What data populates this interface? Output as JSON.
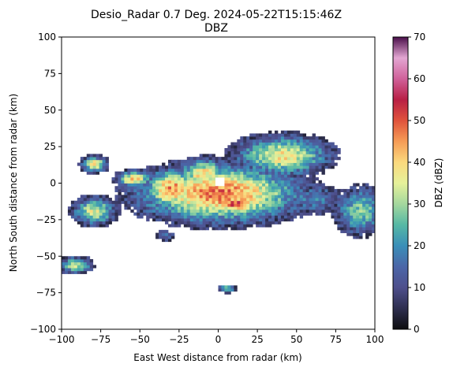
{
  "chart_data": {
    "type": "heatmap",
    "title_line1": "Desio_Radar 0.7 Deg. 2024-05-22T15:15:46Z",
    "title_line2": "DBZ",
    "xlabel": "East West distance from radar (km)",
    "ylabel": "North South distance from radar (km)",
    "xlim": [
      -100,
      100
    ],
    "ylim": [
      -100,
      100
    ],
    "xticks": [
      -100,
      -75,
      -50,
      -25,
      0,
      25,
      50,
      75,
      100
    ],
    "yticks": [
      -100,
      -75,
      -50,
      -25,
      0,
      25,
      50,
      75,
      100
    ],
    "grid": false,
    "colorbar": {
      "label": "DBZ (dBZ)",
      "range": [
        0,
        70
      ],
      "ticks": [
        0,
        10,
        20,
        30,
        40,
        50,
        60,
        70
      ],
      "colormap": "Spectral_r-like (black-purple-blue-green-yellow-orange-red-magenta-purple)",
      "stops": [
        {
          "value": 0,
          "color": "#0d0d0f"
        },
        {
          "value": 5,
          "color": "#2e2f4f"
        },
        {
          "value": 10,
          "color": "#4e4f8c"
        },
        {
          "value": 15,
          "color": "#4b66a8"
        },
        {
          "value": 20,
          "color": "#3a8fb8"
        },
        {
          "value": 25,
          "color": "#56b8a5"
        },
        {
          "value": 30,
          "color": "#a4d89e"
        },
        {
          "value": 35,
          "color": "#e6f19a"
        },
        {
          "value": 40,
          "color": "#fbd97d"
        },
        {
          "value": 45,
          "color": "#f69c56"
        },
        {
          "value": 50,
          "color": "#e0533c"
        },
        {
          "value": 55,
          "color": "#b81f45"
        },
        {
          "value": 60,
          "color": "#d0619a"
        },
        {
          "value": 65,
          "color": "#e3a6d2"
        },
        {
          "value": 70,
          "color": "#4a0f4a"
        }
      ]
    },
    "echo_regions": [
      {
        "x": 0,
        "y": -8,
        "sx": 38,
        "sy": 14,
        "peak": 48
      },
      {
        "x": 40,
        "y": 18,
        "sx": 22,
        "sy": 10,
        "peak": 38
      },
      {
        "x": -30,
        "y": -5,
        "sx": 14,
        "sy": 10,
        "peak": 46
      },
      {
        "x": 10,
        "y": -15,
        "sx": 12,
        "sy": 5,
        "peak": 52
      },
      {
        "x": -10,
        "y": 5,
        "sx": 12,
        "sy": 8,
        "peak": 40
      },
      {
        "x": -80,
        "y": -20,
        "sx": 10,
        "sy": 7,
        "peak": 35
      },
      {
        "x": -80,
        "y": 12,
        "sx": 6,
        "sy": 4,
        "peak": 40
      },
      {
        "x": -55,
        "y": 2,
        "sx": 8,
        "sy": 4,
        "peak": 42
      },
      {
        "x": 90,
        "y": -20,
        "sx": 12,
        "sy": 12,
        "peak": 28
      },
      {
        "x": -92,
        "y": -57,
        "sx": 8,
        "sy": 4,
        "peak": 32
      },
      {
        "x": 5,
        "y": -73,
        "sx": 4,
        "sy": 2,
        "peak": 30
      },
      {
        "x": 60,
        "y": -12,
        "sx": 18,
        "sy": 8,
        "peak": 18
      },
      {
        "x": -35,
        "y": -37,
        "sx": 6,
        "sy": 3,
        "peak": 14
      }
    ]
  }
}
